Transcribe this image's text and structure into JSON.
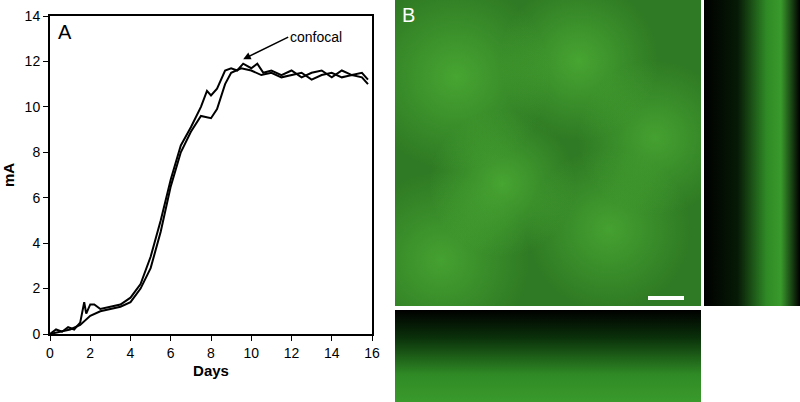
{
  "chart_data": {
    "type": "line",
    "panel_label": "A",
    "x_label": "Days",
    "y_label": "mA",
    "xlim": [
      0,
      16
    ],
    "xticks": [
      0,
      2,
      4,
      6,
      8,
      10,
      12,
      14,
      16
    ],
    "ylim": [
      0,
      14
    ],
    "yticks": [
      0,
      2,
      4,
      6,
      8,
      10,
      12,
      14
    ],
    "grid": false,
    "annotations": [
      {
        "text": "confocal",
        "x": 9.6,
        "y": 12.1
      }
    ],
    "series": [
      {
        "color": "#000000",
        "line_style": "solid",
        "x": [
          0,
          0.3,
          0.6,
          0.9,
          1.2,
          1.5,
          1.7,
          1.8,
          2.0,
          2.2,
          2.5,
          3.0,
          3.5,
          4.0,
          4.5,
          5.0,
          5.5,
          6.0,
          6.5,
          7.0,
          7.5,
          7.8,
          8.0,
          8.3,
          8.7,
          9.0,
          9.3,
          9.6,
          10.0,
          10.3,
          10.6,
          11.0,
          11.5,
          12.0,
          12.5,
          13.0,
          13.5,
          14.0,
          14.5,
          15.0,
          15.5,
          15.8
        ],
        "values": [
          0,
          0.2,
          0.1,
          0.3,
          0.2,
          0.5,
          1.4,
          0.9,
          1.3,
          1.3,
          1.1,
          1.2,
          1.3,
          1.6,
          2.2,
          3.4,
          5.0,
          6.8,
          8.3,
          9.1,
          10.0,
          10.7,
          10.5,
          10.8,
          11.6,
          11.7,
          11.6,
          11.9,
          11.7,
          11.9,
          11.5,
          11.6,
          11.4,
          11.6,
          11.3,
          11.5,
          11.6,
          11.3,
          11.6,
          11.4,
          11.5,
          11.2
        ]
      },
      {
        "color": "#000000",
        "line_style": "solid",
        "x": [
          0,
          0.5,
          1.0,
          1.5,
          2.0,
          2.5,
          3.0,
          3.5,
          4.0,
          4.5,
          5.0,
          5.5,
          6.0,
          6.5,
          7.0,
          7.5,
          8.0,
          8.3,
          8.7,
          9.0,
          9.5,
          10.0,
          10.5,
          11.0,
          11.5,
          12.0,
          12.5,
          13.0,
          13.5,
          14.0,
          14.5,
          15.0,
          15.5,
          15.8
        ],
        "values": [
          0,
          0.1,
          0.2,
          0.4,
          0.8,
          1.0,
          1.1,
          1.2,
          1.4,
          2.0,
          2.9,
          4.5,
          6.5,
          8.0,
          8.9,
          9.6,
          9.5,
          9.9,
          11.0,
          11.5,
          11.7,
          11.6,
          11.4,
          11.5,
          11.3,
          11.4,
          11.5,
          11.2,
          11.4,
          11.5,
          11.3,
          11.4,
          11.3,
          11.0
        ]
      }
    ]
  },
  "panels": {
    "B": {
      "label": "B"
    }
  }
}
